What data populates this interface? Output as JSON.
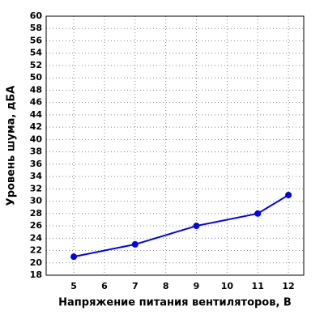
{
  "chart_data": {
    "type": "line",
    "x_label": "Напряжение питания вентиляторов, В",
    "y_label": "Уровень шума, дБА",
    "series": [
      {
        "color": "#0000ee",
        "x": [
          5,
          7,
          9,
          11,
          12
        ],
        "values": [
          21,
          23,
          26,
          28,
          31
        ]
      }
    ],
    "xlim": [
      4.1,
      12.5
    ],
    "xticks": [
      5,
      6,
      7,
      8,
      9,
      10,
      11,
      12
    ],
    "ylim": [
      18,
      60
    ],
    "yticks": [
      18,
      20,
      22,
      24,
      26,
      28,
      30,
      32,
      34,
      36,
      38,
      40,
      42,
      44,
      46,
      48,
      50,
      52,
      54,
      56,
      58,
      60
    ],
    "grid": true
  }
}
